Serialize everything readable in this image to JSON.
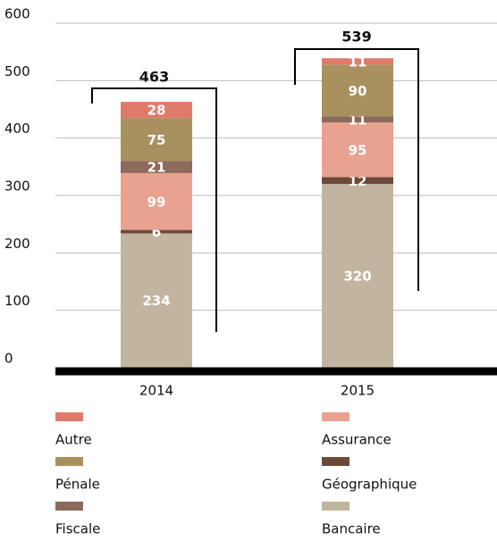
{
  "chart_data": {
    "type": "stacked_bar",
    "categories": [
      "2014",
      "2015"
    ],
    "series": [
      {
        "name": "Bancaire",
        "color": "#c2b59f",
        "values": [
          234,
          320
        ]
      },
      {
        "name": "Géographique",
        "color": "#6b4a3a",
        "values": [
          6,
          12
        ]
      },
      {
        "name": "Assurance",
        "color": "#e9a190",
        "values": [
          99,
          95
        ]
      },
      {
        "name": "Fiscale",
        "color": "#8c6a5c",
        "values": [
          21,
          11
        ]
      },
      {
        "name": "Pénale",
        "color": "#a8905f",
        "values": [
          75,
          90
        ]
      },
      {
        "name": "Autre",
        "color": "#e07b6b",
        "values": [
          28,
          11
        ]
      }
    ],
    "totals": [
      463,
      539
    ],
    "ylim": [
      0,
      600
    ],
    "yticks": [
      0,
      100,
      200,
      300,
      400,
      500,
      600
    ],
    "grid": true
  }
}
